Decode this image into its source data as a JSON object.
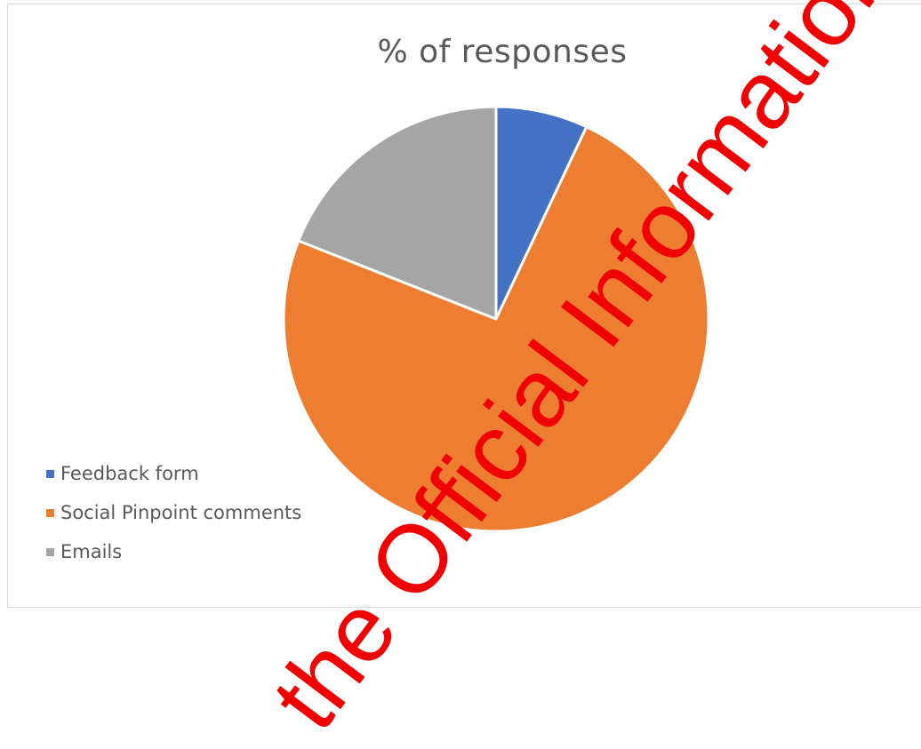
{
  "chart_data": {
    "type": "pie",
    "title": "% of responses",
    "categories": [
      "Feedback form",
      "Social Pinpoint comments",
      "Emails"
    ],
    "values": [
      7,
      74,
      19
    ],
    "colors": [
      "#4472c4",
      "#ed7d31",
      "#a5a5a5"
    ],
    "start_angle_deg": 0,
    "direction": "clockwise",
    "legend_position": "bottom-left"
  },
  "watermark": {
    "text": "the Official Information",
    "color": "#f00000"
  }
}
